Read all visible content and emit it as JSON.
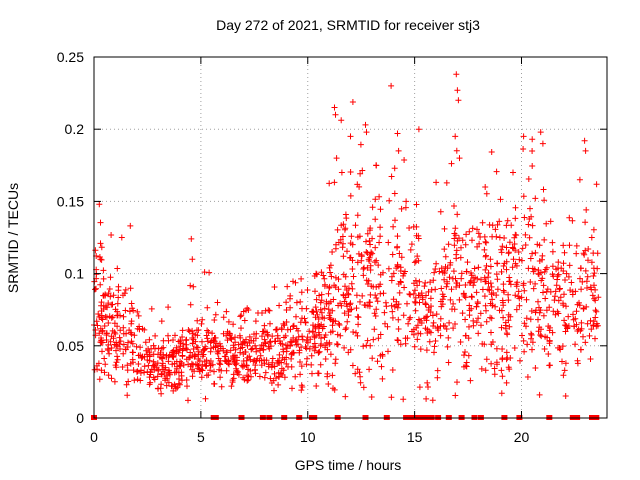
{
  "chart_data": {
    "type": "scatter",
    "title": "Day 272 of 2021, SRMTID for receiver stj3",
    "xlabel": "GPS time / hours",
    "ylabel": "SRMTID / TECUs",
    "xlim": [
      0,
      24
    ],
    "ylim": [
      0,
      0.25
    ],
    "x_ticks": [
      0,
      5,
      10,
      15,
      20
    ],
    "x_tick_labels": [
      "0",
      "5",
      "10",
      "15",
      "20"
    ],
    "y_ticks": [
      0,
      0.05,
      0.1,
      0.15,
      0.2,
      0.25
    ],
    "y_tick_labels": [
      "0",
      "0.05",
      "0.1",
      "0.15",
      "0.2",
      "0.25"
    ],
    "grid": true,
    "marker": "+",
    "series_color": "#ff0000",
    "series": [
      {
        "name": "SRMTID",
        "trend": [
          [
            0.0,
            0.075,
            0.02
          ],
          [
            0.5,
            0.065,
            0.02
          ],
          [
            1.0,
            0.058,
            0.018
          ],
          [
            1.5,
            0.055,
            0.02
          ],
          [
            2.0,
            0.05,
            0.015
          ],
          [
            2.5,
            0.038,
            0.01
          ],
          [
            3.0,
            0.035,
            0.01
          ],
          [
            3.5,
            0.038,
            0.01
          ],
          [
            4.0,
            0.042,
            0.012
          ],
          [
            4.5,
            0.045,
            0.012
          ],
          [
            5.0,
            0.04,
            0.012
          ],
          [
            5.5,
            0.048,
            0.012
          ],
          [
            6.0,
            0.048,
            0.012
          ],
          [
            6.5,
            0.045,
            0.012
          ],
          [
            7.0,
            0.045,
            0.012
          ],
          [
            7.5,
            0.044,
            0.012
          ],
          [
            8.0,
            0.047,
            0.012
          ],
          [
            8.5,
            0.05,
            0.014
          ],
          [
            9.0,
            0.052,
            0.014
          ],
          [
            9.5,
            0.055,
            0.015
          ],
          [
            10.0,
            0.055,
            0.015
          ],
          [
            10.5,
            0.06,
            0.018
          ],
          [
            11.0,
            0.07,
            0.025
          ],
          [
            11.5,
            0.08,
            0.03
          ],
          [
            12.0,
            0.1,
            0.035
          ],
          [
            12.5,
            0.095,
            0.035
          ],
          [
            13.0,
            0.09,
            0.03
          ],
          [
            13.5,
            0.08,
            0.03
          ],
          [
            14.0,
            0.09,
            0.03
          ],
          [
            14.5,
            0.1,
            0.03
          ],
          [
            15.0,
            0.09,
            0.03
          ],
          [
            15.5,
            0.07,
            0.025
          ],
          [
            16.0,
            0.07,
            0.025
          ],
          [
            16.5,
            0.09,
            0.03
          ],
          [
            17.0,
            0.1,
            0.035
          ],
          [
            17.5,
            0.09,
            0.03
          ],
          [
            18.0,
            0.085,
            0.025
          ],
          [
            18.5,
            0.09,
            0.03
          ],
          [
            19.0,
            0.08,
            0.03
          ],
          [
            19.5,
            0.085,
            0.03
          ],
          [
            20.0,
            0.1,
            0.035
          ],
          [
            20.5,
            0.1,
            0.035
          ],
          [
            21.0,
            0.09,
            0.03
          ],
          [
            21.5,
            0.08,
            0.03
          ],
          [
            22.0,
            0.085,
            0.03
          ],
          [
            22.5,
            0.075,
            0.025
          ],
          [
            23.0,
            0.09,
            0.03
          ],
          [
            23.5,
            0.085,
            0.02
          ]
        ],
        "outliers": [
          [
            0.25,
            0.148
          ],
          [
            0.3,
            0.11
          ],
          [
            1.3,
            0.125
          ],
          [
            1.7,
            0.133
          ],
          [
            4.55,
            0.124
          ],
          [
            4.6,
            0.11
          ],
          [
            11.25,
            0.215
          ],
          [
            11.3,
            0.21
          ],
          [
            11.35,
            0.18
          ],
          [
            12.0,
            0.195
          ],
          [
            12.7,
            0.203
          ],
          [
            12.75,
            0.198
          ],
          [
            13.9,
            0.23
          ],
          [
            14.2,
            0.197
          ],
          [
            14.25,
            0.185
          ],
          [
            15.2,
            0.2
          ],
          [
            16.95,
            0.238
          ],
          [
            17.0,
            0.227
          ],
          [
            17.05,
            0.22
          ],
          [
            16.9,
            0.195
          ],
          [
            17.1,
            0.18
          ],
          [
            20.1,
            0.195
          ],
          [
            20.5,
            0.193
          ],
          [
            20.9,
            0.198
          ],
          [
            21.0,
            0.19
          ],
          [
            22.95,
            0.192
          ],
          [
            23.0,
            0.185
          ],
          [
            11.6,
            0.17
          ],
          [
            13.2,
            0.175
          ],
          [
            14.6,
            0.15
          ],
          [
            18.3,
            0.16
          ],
          [
            19.6,
            0.17
          ]
        ],
        "zero_points": [
          0.0,
          5.6,
          5.7,
          6.9,
          7.9,
          8.2,
          8.9,
          9.6,
          10.2,
          10.3,
          11.4,
          12.7,
          13.7,
          14.6,
          14.8,
          15.0,
          15.2,
          15.4,
          15.6,
          15.8,
          16.1,
          16.6,
          17.2,
          17.8,
          18.1,
          19.2,
          19.9,
          21.3,
          22.4,
          22.6,
          23.3,
          23.5
        ]
      }
    ]
  }
}
